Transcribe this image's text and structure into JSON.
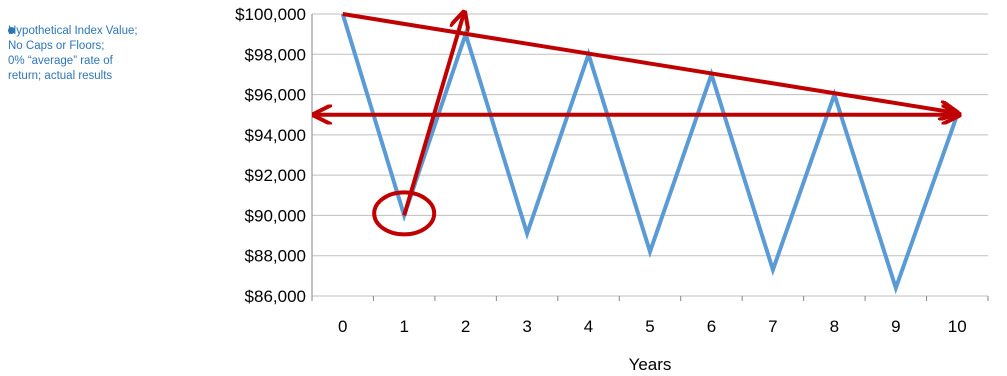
{
  "chart_data": {
    "type": "line",
    "title": "",
    "xlabel": "Years",
    "ylabel": "",
    "x": [
      0,
      1,
      2,
      3,
      4,
      5,
      6,
      7,
      8,
      9,
      10
    ],
    "x_tick_labels": [
      "0",
      "1",
      "2",
      "3",
      "4",
      "5",
      "6",
      "7",
      "8",
      "9",
      "10"
    ],
    "ylim": [
      86000,
      100000
    ],
    "y_ticks": [
      86000,
      88000,
      90000,
      92000,
      94000,
      96000,
      98000,
      100000
    ],
    "y_tick_labels": [
      "$86,000",
      "$88,000",
      "$90,000",
      "$92,000",
      "$94,000",
      "$96,000",
      "$98,000",
      "$100,000"
    ],
    "grid": "horizontal",
    "legend_position": "top-left",
    "series": [
      {
        "name": "Hypothetical Index Value; No Caps or Floors; 0% “average” rate of return; actual results",
        "color": "#5b9bd5",
        "values": [
          100000,
          90000,
          99000,
          89100,
          98000,
          88200,
          97000,
          87300,
          96000,
          86400,
          95000
        ]
      }
    ],
    "annotations": {
      "color": "#c00000",
      "declining_trend_arrow": {
        "from": [
          0,
          100000
        ],
        "to": [
          10,
          95000
        ]
      },
      "horizontal_double_arrow": {
        "from": [
          0,
          95000
        ],
        "to": [
          10,
          95000
        ]
      },
      "rising_arrow": {
        "from": [
          1,
          90000
        ],
        "to": [
          2,
          100000
        ]
      },
      "circle_marker": {
        "at": [
          1,
          90000
        ]
      }
    }
  },
  "legend": {
    "lines": [
      "Hypothetical Index Value;",
      "No Caps or Floors;",
      "0% “average” rate of",
      "return; actual results"
    ]
  }
}
